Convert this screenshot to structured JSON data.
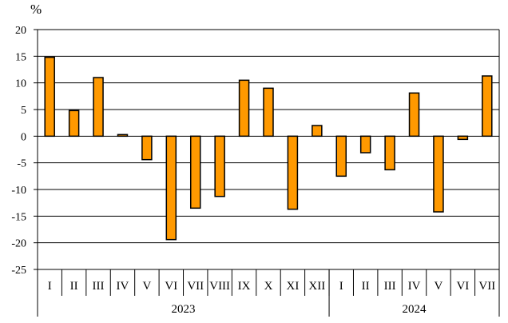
{
  "chart_data": {
    "type": "bar",
    "unit_label": "%",
    "ylim": [
      -25,
      20
    ],
    "yticks": [
      20,
      15,
      10,
      5,
      0,
      -5,
      -10,
      -15,
      -20,
      -25
    ],
    "grid": true,
    "bar_color": "#ff9900",
    "categories": [
      "I",
      "II",
      "III",
      "IV",
      "V",
      "VI",
      "VII",
      "VIII",
      "IX",
      "X",
      "XI",
      "XII",
      "I",
      "II",
      "III",
      "IV",
      "V",
      "VI",
      "VII"
    ],
    "values": [
      14.8,
      4.8,
      11.0,
      0.3,
      -4.4,
      -19.4,
      -13.5,
      -11.3,
      10.5,
      9.0,
      -13.7,
      2.0,
      -7.5,
      -3.1,
      -6.3,
      8.1,
      -14.2,
      -0.6,
      11.3
    ],
    "groups": [
      {
        "label": "2023",
        "count": 12
      },
      {
        "label": "2024",
        "count": 7
      }
    ]
  }
}
